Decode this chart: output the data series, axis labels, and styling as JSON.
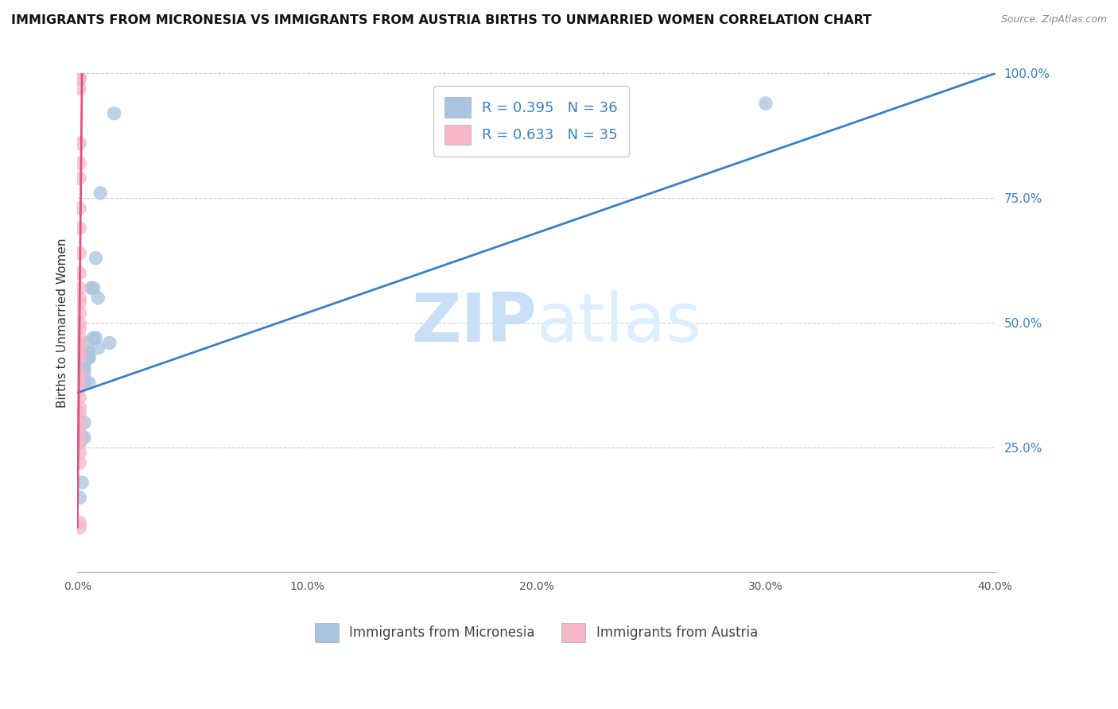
{
  "title": "IMMIGRANTS FROM MICRONESIA VS IMMIGRANTS FROM AUSTRIA BIRTHS TO UNMARRIED WOMEN CORRELATION CHART",
  "source": "Source: ZipAtlas.com",
  "ylabel": "Births to Unmarried Women",
  "legend1_label": "R = 0.395   N = 36",
  "legend2_label": "R = 0.633   N = 35",
  "legend1_color": "#a8c4e0",
  "legend2_color": "#f4b8c8",
  "line1_color": "#3a7fc1",
  "line2_color": "#e05080",
  "scatter1_color": "#a8c4e0",
  "scatter2_color": "#f4b8c8",
  "watermark_zip": "ZIP",
  "watermark_atlas": "atlas",
  "watermark_color": "#ddeeff",
  "bottom_legend1": "Immigrants from Micronesia",
  "bottom_legend2": "Immigrants from Austria",
  "mic_x": [
    0.001,
    0.002,
    0.002,
    0.003,
    0.005,
    0.008,
    0.003,
    0.002,
    0.007,
    0.001,
    0.003,
    0.005,
    0.003,
    0.009,
    0.002,
    0.001,
    0.014,
    0.008,
    0.006,
    0.007,
    0.009,
    0.004,
    0.01,
    0.016,
    0.003,
    0.005,
    0.002,
    0.001,
    0.002,
    0.003,
    0.001,
    0.005,
    0.003,
    0.002,
    0.3,
    0.001
  ],
  "mic_y": [
    0.44,
    0.42,
    0.39,
    0.38,
    0.43,
    0.47,
    0.41,
    0.44,
    0.47,
    0.26,
    0.3,
    0.44,
    0.42,
    0.45,
    0.41,
    0.4,
    0.46,
    0.63,
    0.57,
    0.57,
    0.55,
    0.46,
    0.76,
    0.92,
    0.43,
    0.43,
    0.43,
    0.28,
    0.27,
    0.27,
    0.26,
    0.38,
    0.4,
    0.18,
    0.94,
    0.15
  ],
  "aut_x": [
    0.001,
    0.001,
    0.001,
    0.001,
    0.001,
    0.001,
    0.001,
    0.001,
    0.001,
    0.001,
    0.001,
    0.001,
    0.001,
    0.001,
    0.001,
    0.001,
    0.001,
    0.001,
    0.001,
    0.001,
    0.001,
    0.001,
    0.001,
    0.001,
    0.001,
    0.001,
    0.001,
    0.001,
    0.001,
    0.001,
    0.001,
    0.001,
    0.001,
    0.001,
    0.001
  ],
  "aut_y": [
    0.99,
    0.99,
    0.97,
    0.86,
    0.82,
    0.79,
    0.73,
    0.69,
    0.64,
    0.6,
    0.57,
    0.55,
    0.54,
    0.52,
    0.5,
    0.49,
    0.47,
    0.46,
    0.45,
    0.44,
    0.43,
    0.4,
    0.39,
    0.37,
    0.35,
    0.33,
    0.32,
    0.31,
    0.29,
    0.27,
    0.26,
    0.24,
    0.22,
    0.1,
    0.09
  ],
  "line1_x0": 0.0,
  "line1_y0": 0.36,
  "line1_x1": 0.4,
  "line1_y1": 1.0,
  "line2_x0": 0.0,
  "line2_y0": 0.09,
  "line2_x1": 0.002,
  "line2_y1": 1.0,
  "xlim": [
    0,
    0.4
  ],
  "ylim": [
    0,
    1.0
  ],
  "xticks": [
    0.0,
    0.1,
    0.2,
    0.3,
    0.4
  ],
  "xticklabels": [
    "0.0%",
    "10.0%",
    "20.0%",
    "30.0%",
    "40.0%"
  ],
  "yticks_right": [
    0.25,
    0.5,
    0.75,
    1.0
  ],
  "yticklabels_right": [
    "25.0%",
    "50.0%",
    "75.0%",
    "100.0%"
  ]
}
